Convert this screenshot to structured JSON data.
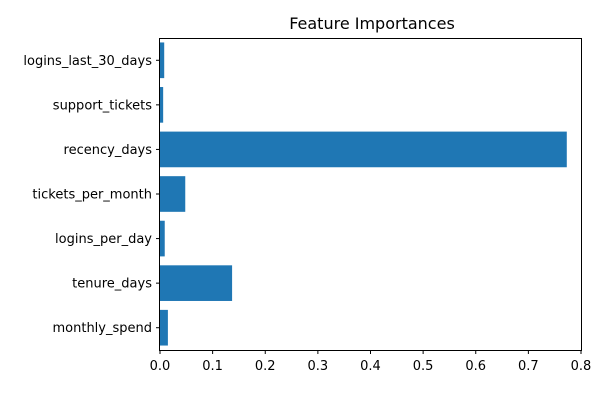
{
  "chart_data": {
    "type": "bar",
    "orientation": "horizontal",
    "title": "Feature Importances",
    "xlabel": "",
    "ylabel": "",
    "categories": [
      "logins_last_30_days",
      "support_tickets",
      "recency_days",
      "tickets_per_month",
      "logins_per_day",
      "tenure_days",
      "monthly_spend"
    ],
    "values": [
      0.008,
      0.006,
      0.773,
      0.048,
      0.009,
      0.137,
      0.015
    ],
    "xlim": [
      0,
      0.8
    ],
    "xticks": [
      0.0,
      0.1,
      0.2,
      0.3,
      0.4,
      0.5,
      0.6,
      0.7,
      0.8
    ],
    "xtick_labels": [
      "0.0",
      "0.1",
      "0.2",
      "0.3",
      "0.4",
      "0.5",
      "0.6",
      "0.7",
      "0.8"
    ],
    "bar_color": "#1f77b4",
    "grid": false
  }
}
